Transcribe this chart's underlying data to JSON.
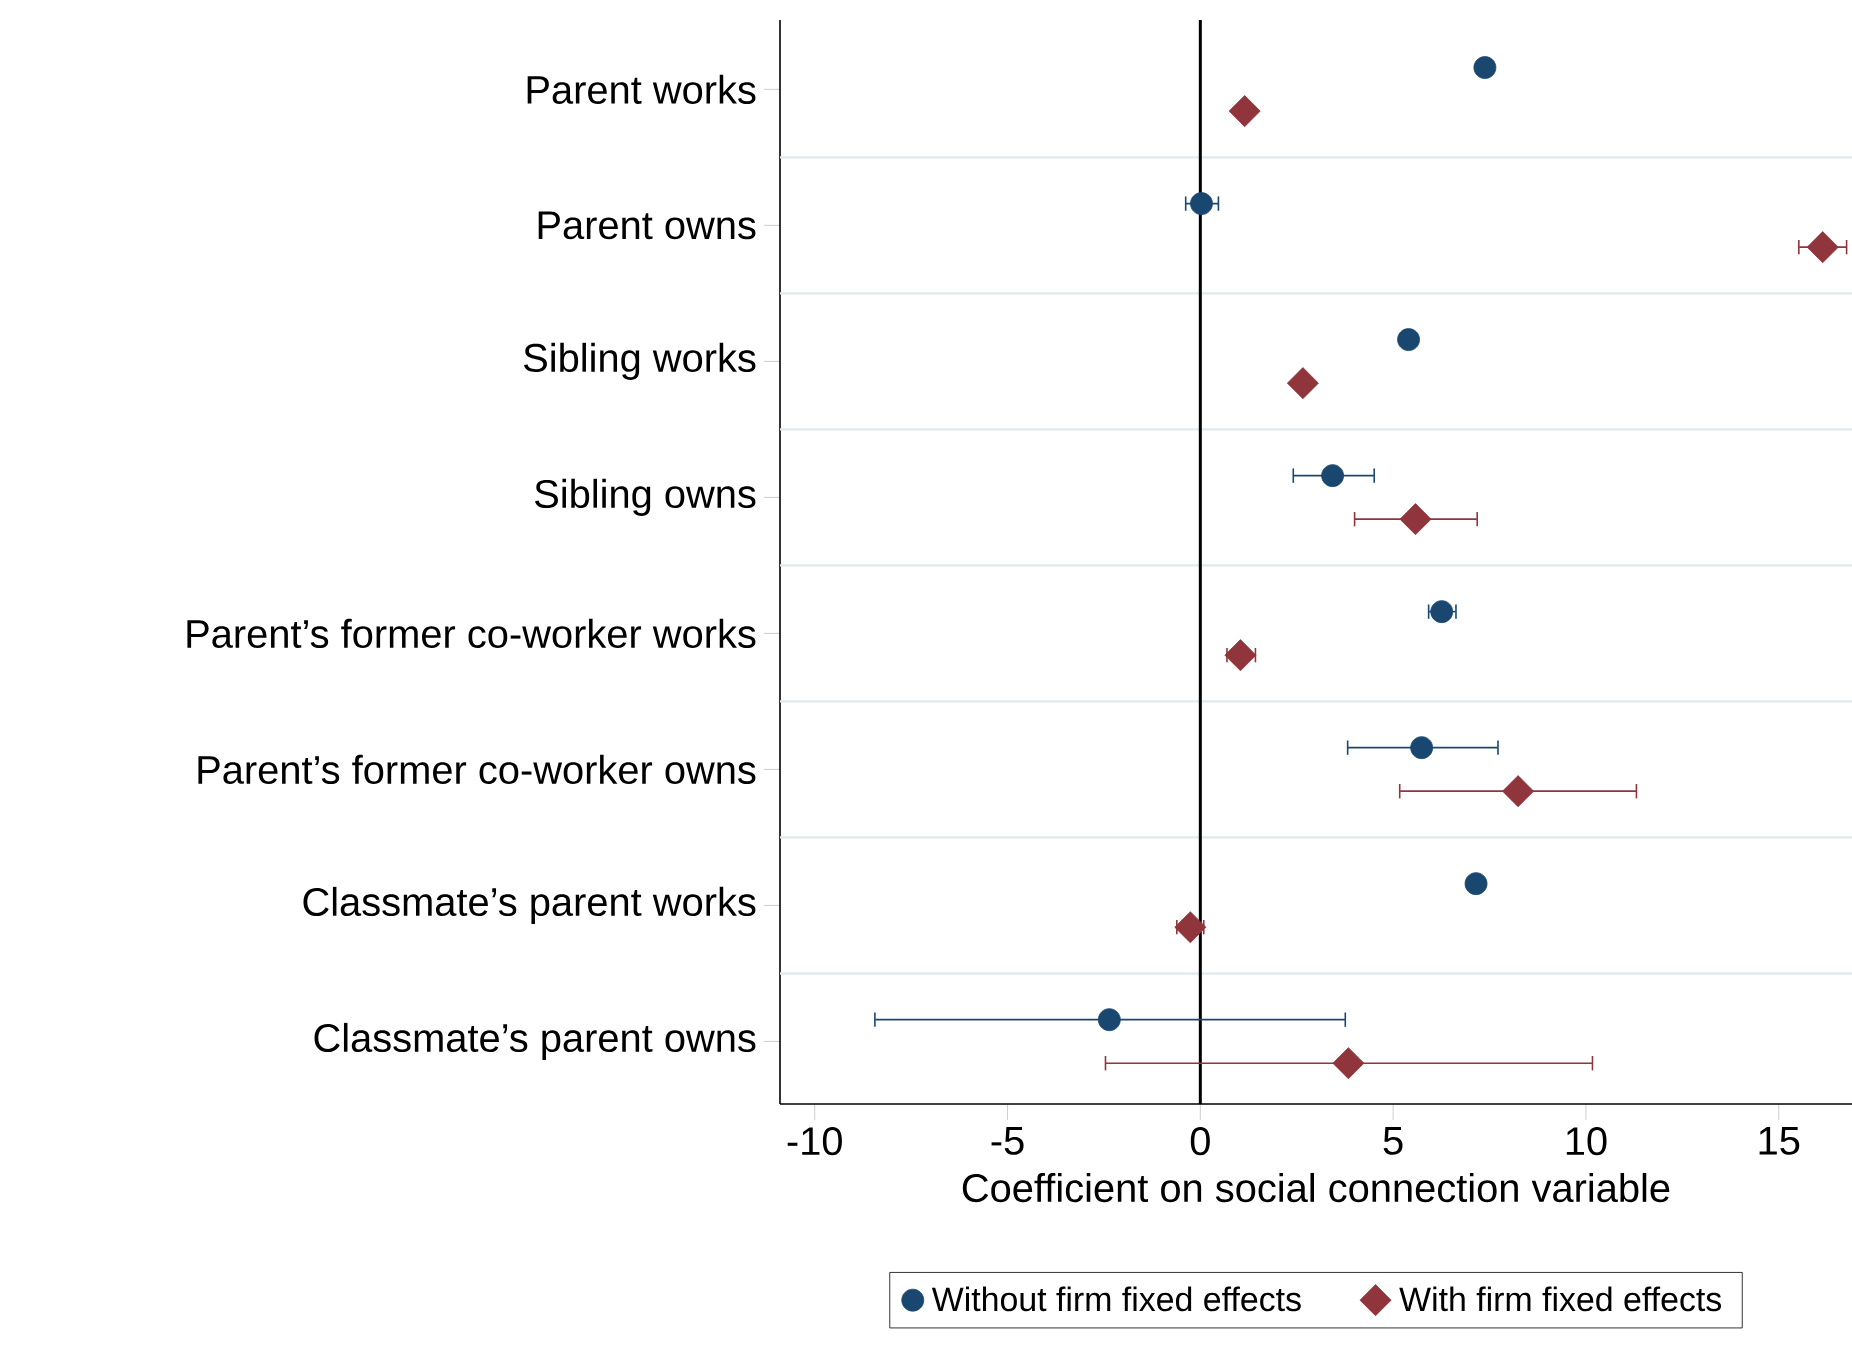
{
  "chart_data": {
    "type": "scatter",
    "orientation": "horizontal",
    "categories": [
      "Parent works",
      "Parent owns",
      "Sibling works",
      "Sibling owns",
      "Parent’s former co-worker works",
      "Parent’s former co-worker owns",
      "Classmate’s parent works",
      "Classmate’s parent owns"
    ],
    "xlabel": "Coefficient on social connection variable",
    "xlim": [
      -10.9,
      16.9
    ],
    "xticks": [
      -10,
      -5,
      0,
      5,
      10,
      15
    ],
    "grid": "y",
    "legend": "bottom",
    "ref_lines": [
      {
        "axis": "x",
        "value": 0,
        "color": "#000000"
      }
    ],
    "series": [
      {
        "name": "Without firm fixed effects",
        "color": "#1a476f",
        "marker": "circle",
        "values": [
          7.38,
          0.03,
          5.4,
          3.43,
          6.26,
          5.74,
          7.15,
          -2.36
        ],
        "errors": [
          null,
          [
            -0.4,
            0.49
          ],
          null,
          [
            2.39,
            4.53
          ],
          [
            5.9,
            6.65
          ],
          [
            3.8,
            7.74
          ],
          null,
          [
            -8.46,
            3.78
          ]
        ]
      },
      {
        "name": "With firm fixed effects",
        "color": "#90353b",
        "marker": "diamond",
        "values": [
          1.15,
          16.14,
          2.66,
          5.58,
          1.04,
          8.24,
          -0.26,
          3.84
        ],
        "errors": [
          null,
          [
            15.5,
            16.78
          ],
          null,
          [
            3.98,
            7.2
          ],
          [
            0.67,
            1.45
          ],
          [
            5.15,
            11.33
          ],
          [
            -0.63,
            0.11
          ],
          [
            -2.48,
            10.19
          ]
        ]
      }
    ]
  }
}
